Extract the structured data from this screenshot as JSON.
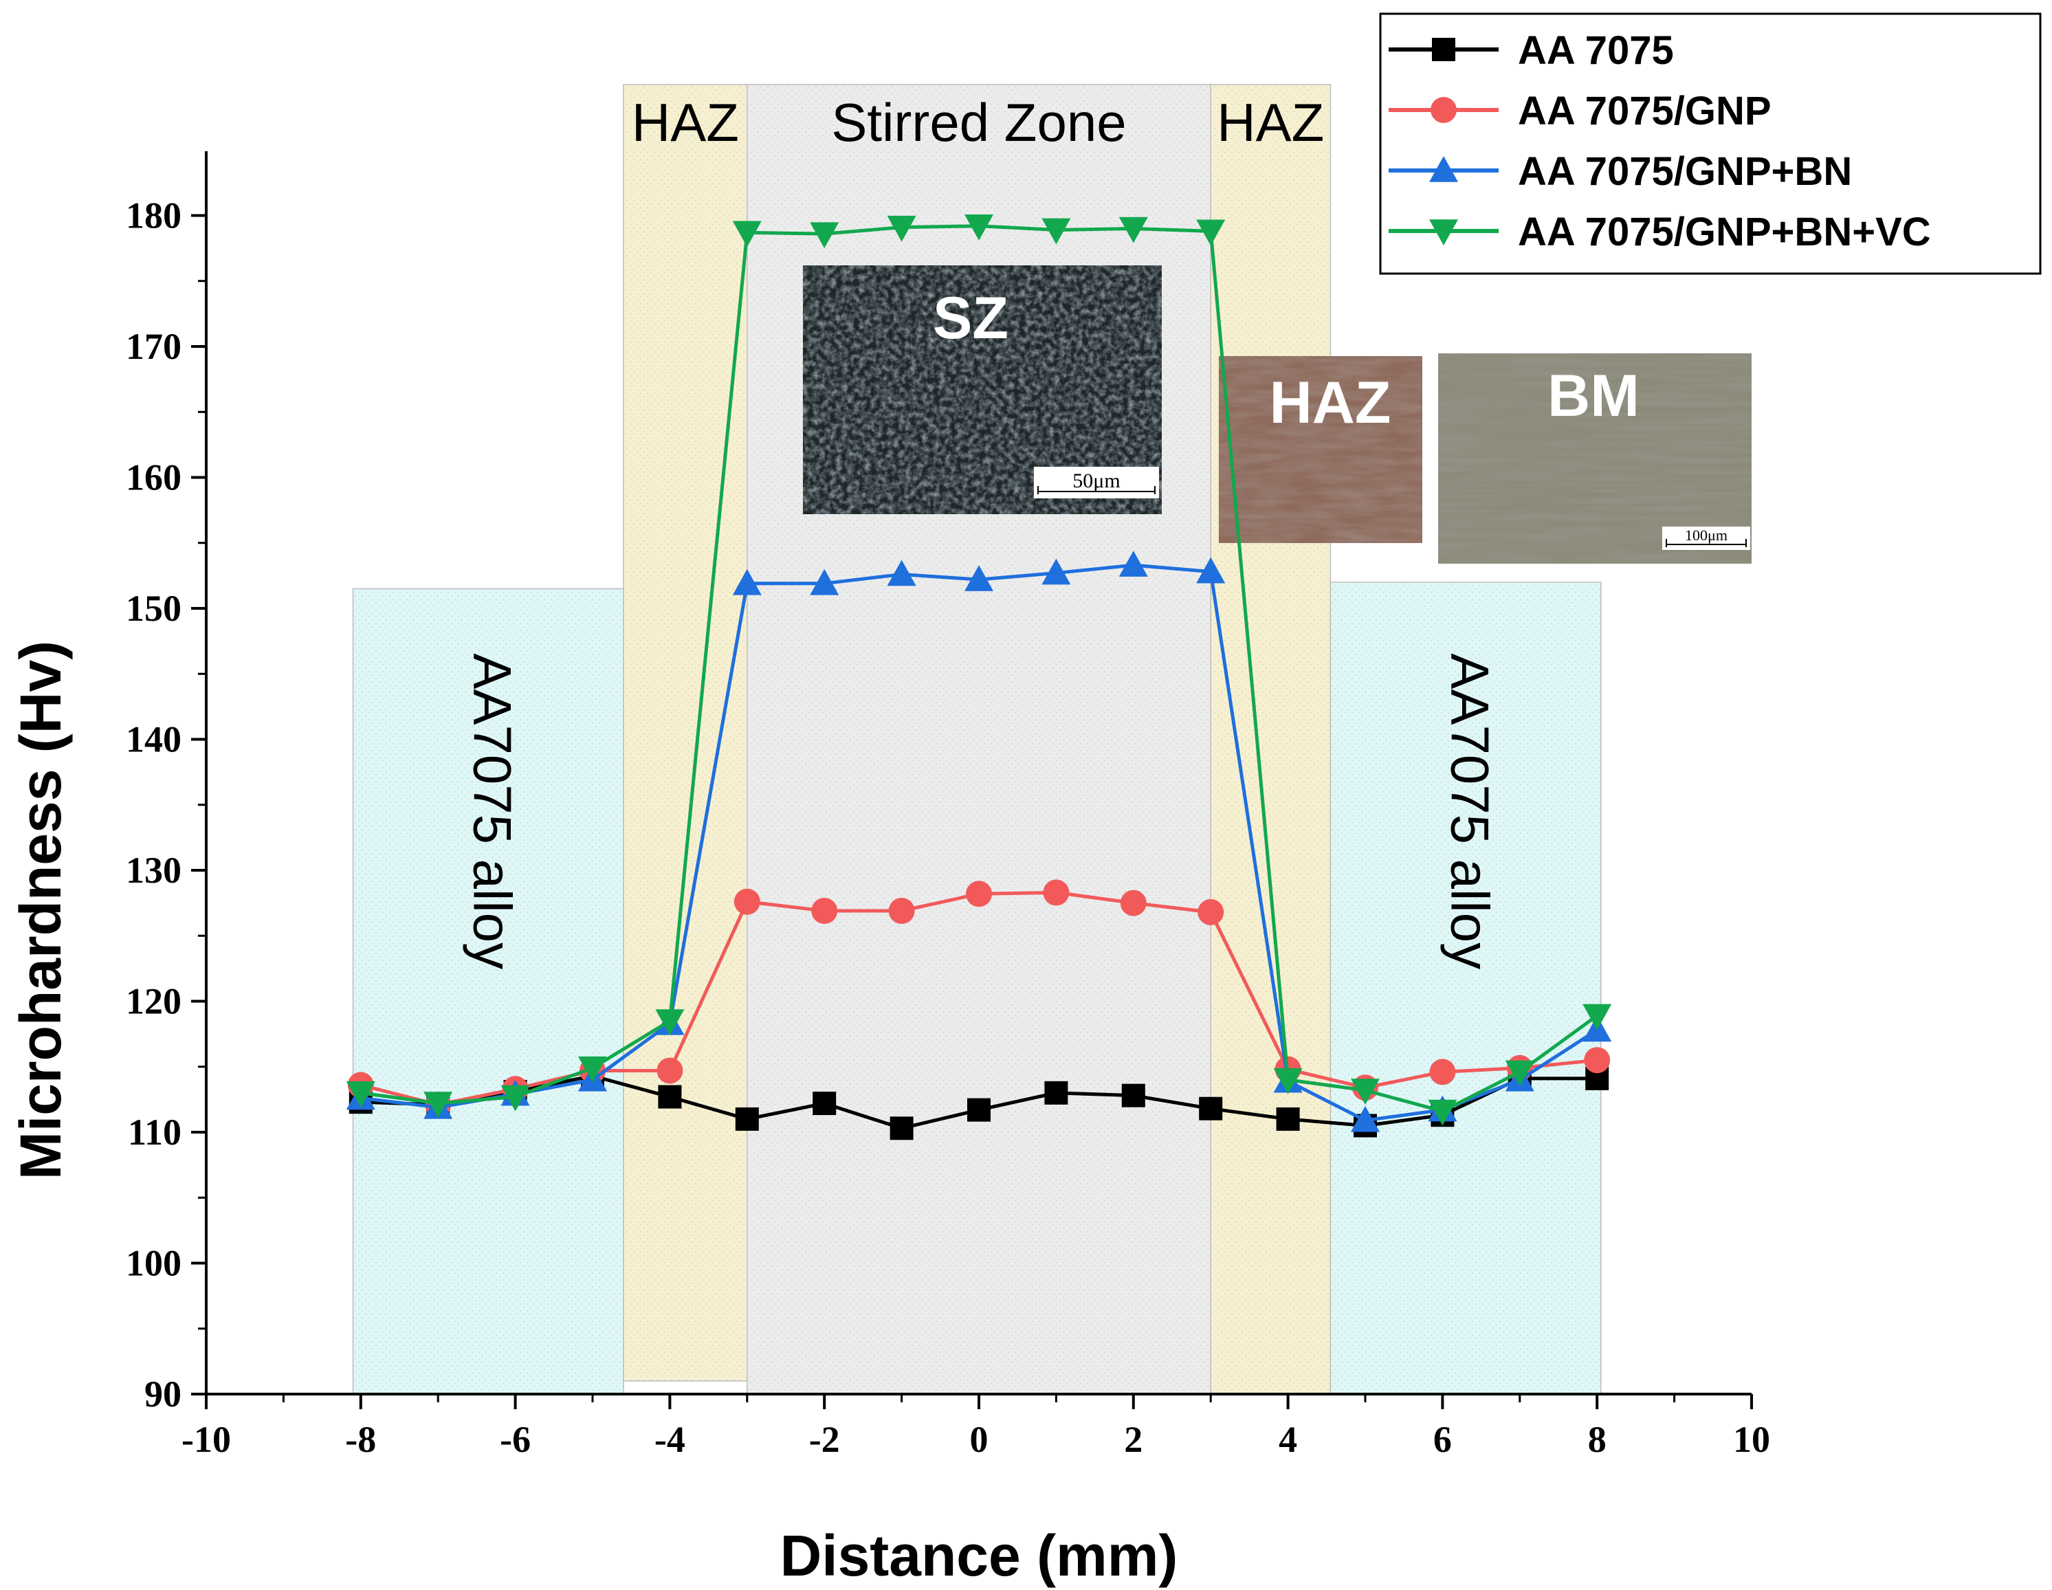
{
  "chart_data": {
    "type": "line",
    "title": "",
    "xlabel": "Distance (mm)",
    "ylabel": "Microhardness (Hv)",
    "xlim": [
      -10,
      10
    ],
    "ylim": [
      90,
      185
    ],
    "x_ticks": [
      -10,
      -8,
      -6,
      -4,
      -2,
      0,
      2,
      4,
      6,
      8,
      10
    ],
    "y_ticks": [
      90,
      100,
      110,
      120,
      130,
      140,
      150,
      160,
      170,
      180
    ],
    "grid": false,
    "legend_position": "top-right",
    "regions": [
      {
        "label": "AA7075 alloy",
        "x_range": [
          -8.1,
          -4.6
        ],
        "y_range": [
          90,
          151.5
        ],
        "color": "#dff7f7",
        "orientation": "rotated-down"
      },
      {
        "label": "HAZ",
        "x_range": [
          -4.6,
          -3.0
        ],
        "y_range": [
          91,
          190
        ],
        "color": "#f7f0d0",
        "orientation": "horizontal"
      },
      {
        "label": "Stirred Zone",
        "x_range": [
          -3.0,
          3.0
        ],
        "y_range": [
          90,
          190
        ],
        "color": "#ececec",
        "orientation": "horizontal"
      },
      {
        "label": "HAZ",
        "x_range": [
          3.0,
          4.55
        ],
        "y_range": [
          90,
          190
        ],
        "color": "#f7f0d0",
        "orientation": "horizontal"
      },
      {
        "label": "AA7075 alloy",
        "x_range": [
          4.55,
          8.05
        ],
        "y_range": [
          90,
          152
        ],
        "color": "#dff7f7",
        "orientation": "rotated-down"
      }
    ],
    "series": [
      {
        "name": "AA 7075",
        "color": "#000000",
        "marker": "square",
        "x": [
          -8,
          -7,
          -6,
          -5,
          -4,
          -3,
          -2,
          -1,
          0,
          1,
          2,
          3,
          4,
          5,
          6,
          7,
          8
        ],
        "y": [
          112.3,
          112.1,
          113.1,
          114.3,
          112.7,
          111.0,
          112.2,
          110.3,
          111.7,
          113.0,
          112.8,
          111.8,
          111.0,
          110.5,
          111.3,
          114.1,
          114.1
        ]
      },
      {
        "name": "AA 7075/GNP",
        "color": "#f25a5a",
        "marker": "circle",
        "x": [
          -8,
          -7,
          -6,
          -5,
          -4,
          -3,
          -2,
          -1,
          0,
          1,
          2,
          3,
          4,
          5,
          6,
          7,
          8
        ],
        "y": [
          113.6,
          112.1,
          113.3,
          114.7,
          114.7,
          127.6,
          126.9,
          126.9,
          128.2,
          128.3,
          127.5,
          126.8,
          114.8,
          113.4,
          114.6,
          114.9,
          115.5
        ]
      },
      {
        "name": "AA 7075/GNP+BN",
        "color": "#1f6fdd",
        "marker": "triangle-up",
        "x": [
          -8,
          -7,
          -6,
          -5,
          -4,
          -3,
          -2,
          -1,
          0,
          1,
          2,
          3,
          4,
          5,
          6,
          7,
          8
        ],
        "y": [
          112.6,
          111.9,
          112.9,
          114.0,
          118.3,
          151.9,
          151.9,
          152.6,
          152.2,
          152.7,
          153.3,
          152.8,
          113.9,
          110.9,
          111.7,
          114.0,
          117.8
        ]
      },
      {
        "name": "AA 7075/GNP+BN+VC",
        "color": "#12a84e",
        "marker": "triangle-down",
        "x": [
          -8,
          -7,
          -6,
          -5,
          -4,
          -3,
          -2,
          -1,
          0,
          1,
          2,
          3,
          4,
          5,
          6,
          7,
          8
        ],
        "y": [
          113.0,
          112.2,
          112.7,
          114.9,
          118.5,
          178.7,
          178.6,
          179.1,
          179.2,
          178.9,
          179.0,
          178.8,
          114.0,
          113.2,
          111.6,
          114.6,
          118.9
        ]
      }
    ],
    "insets": [
      {
        "label": "SZ",
        "scale_bar": "50μm"
      },
      {
        "label": "HAZ",
        "scale_bar": ""
      },
      {
        "label": "BM",
        "scale_bar": "100μm"
      }
    ]
  }
}
